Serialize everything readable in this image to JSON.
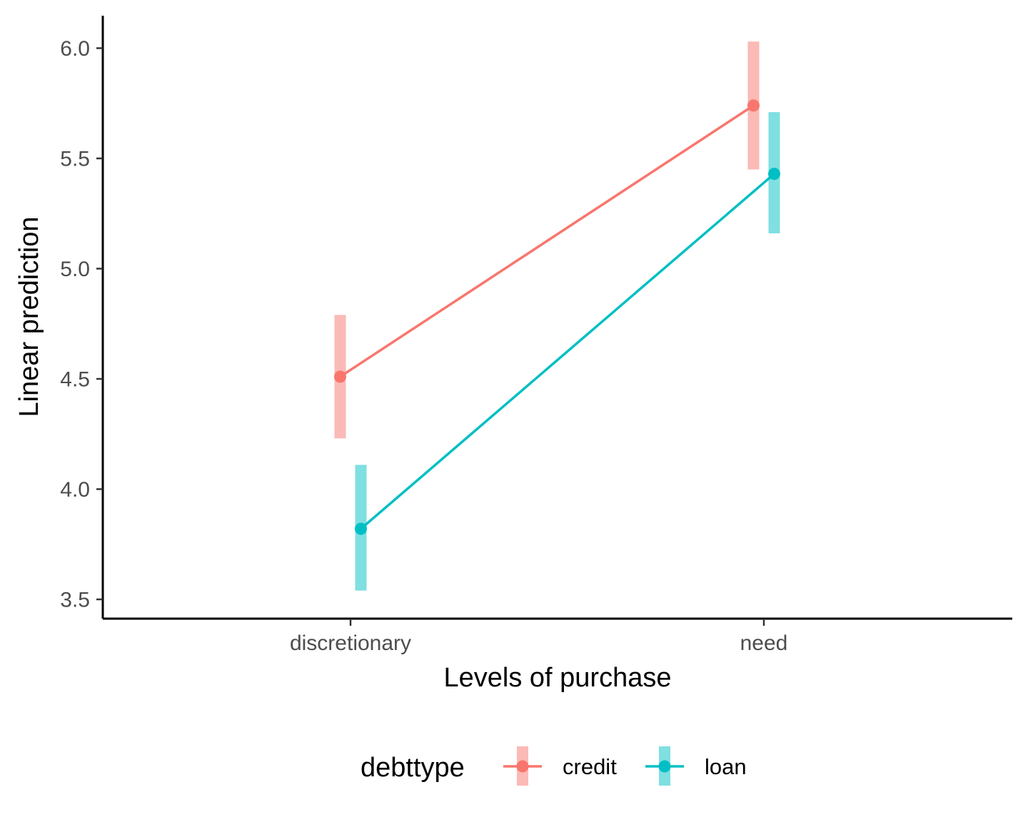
{
  "chart_data": {
    "type": "line",
    "xlabel": "Levels of purchase",
    "ylabel": "Linear prediction",
    "categories": [
      "discretionary",
      "need"
    ],
    "ylim": [
      3.43,
      6.15
    ],
    "yticks": [
      3.5,
      4.0,
      4.5,
      5.0,
      5.5,
      6.0
    ],
    "ytick_labels": [
      "3.5",
      "4.0",
      "4.5",
      "5.0",
      "5.5",
      "6.0"
    ],
    "grid": false,
    "legend": {
      "title": "debttype",
      "position": "bottom"
    },
    "series": [
      {
        "name": "credit",
        "color": "#F8766D",
        "values": [
          4.51,
          5.74
        ],
        "lower": [
          4.23,
          5.45
        ],
        "upper": [
          4.79,
          6.03
        ]
      },
      {
        "name": "loan",
        "color": "#00BFC4",
        "values": [
          3.82,
          5.43
        ],
        "lower": [
          3.54,
          5.16
        ],
        "upper": [
          4.11,
          5.71
        ]
      }
    ]
  }
}
